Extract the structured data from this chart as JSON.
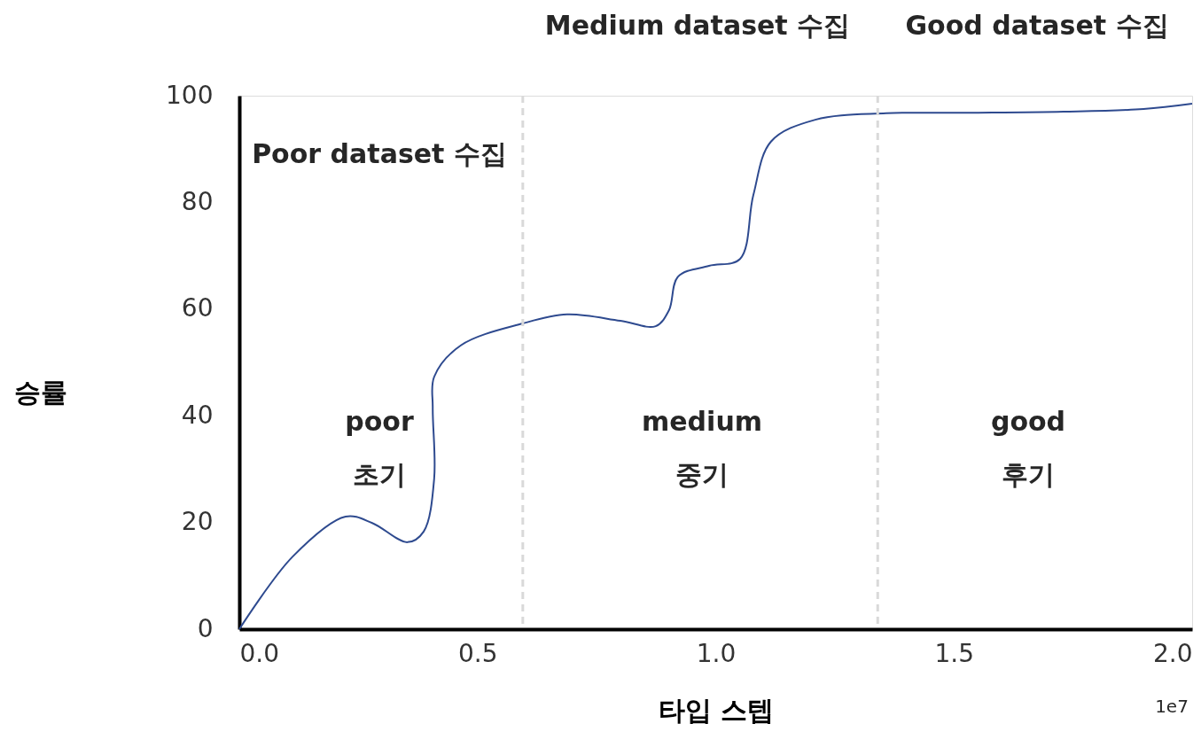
{
  "chart_data": {
    "type": "line",
    "xlabel": "타입 스텝",
    "ylabel": "승률",
    "x": [
      0,
      0.112,
      0.223,
      0.279,
      0.353,
      0.387,
      0.409,
      0.406,
      0.409,
      0.465,
      0.595,
      0.688,
      0.8,
      0.874,
      0.902,
      0.921,
      0.986,
      1.051,
      1.079,
      1.116,
      1.209,
      1.358,
      1.544,
      1.73,
      1.898,
      2.0
    ],
    "series": [
      {
        "color": "#2e4a8f",
        "values": [
          0,
          13.6,
          21.1,
          19.9,
          16.3,
          18.3,
          28.2,
          41.5,
          47.3,
          53.2,
          57.3,
          59.0,
          57.8,
          56.8,
          59.8,
          66.1,
          68.1,
          69.4,
          81.4,
          91.4,
          95.5,
          96.7,
          96.8,
          97.0,
          97.5,
          98.5
        ]
      }
    ],
    "xlim": [
      0,
      2.0
    ],
    "ylim": [
      0,
      100
    ],
    "xticks": [
      {
        "value": 0,
        "label": "0.0"
      },
      0.5,
      {
        "value": 1,
        "label": "1.0"
      },
      1.5,
      {
        "value": 2,
        "label": "2.0"
      }
    ],
    "yticks": [
      0,
      20,
      40,
      60,
      80,
      100
    ],
    "ref_lines": [
      {
        "axis": "x",
        "value": 0.595,
        "color": "#d9d9d9",
        "line_style": "dashed"
      },
      {
        "axis": "x",
        "value": 1.34,
        "color": "#d9d9d9",
        "line_style": "dashed"
      }
    ],
    "annotations": [
      "Poor dataset 수집",
      "Medium dataset 수집",
      "Good dataset 수집",
      "poor\n초기",
      "medium\n중기",
      "good\n후기",
      "1e7"
    ],
    "grid": false,
    "marker": "none",
    "line_style": "solid"
  }
}
